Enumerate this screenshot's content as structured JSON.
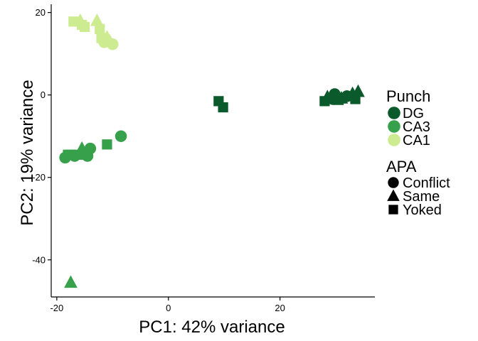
{
  "chart_data": {
    "type": "scatter",
    "xlabel": "PC1: 42% variance",
    "ylabel": "PC2: 19% variance",
    "xlim": [
      -21,
      37
    ],
    "ylim": [
      -49,
      22
    ],
    "xticks": [
      -20,
      0,
      20
    ],
    "xtick_labels": [
      "-20",
      "0",
      "20"
    ],
    "yticks": [
      20,
      0,
      -20,
      -40
    ],
    "ytick_labels": [
      "20",
      "0",
      "-20",
      "-40"
    ],
    "grid": false,
    "legend_position": "right",
    "color_legend": {
      "title": "Punch",
      "entries": [
        {
          "label": "DG",
          "color": "#0b5a2b"
        },
        {
          "label": "CA3",
          "color": "#36a04b"
        },
        {
          "label": "CA1",
          "color": "#cdeb90"
        }
      ]
    },
    "shape_legend": {
      "title": "APA",
      "entries": [
        {
          "label": "Conflict",
          "shape": "circle"
        },
        {
          "label": "Same",
          "shape": "triangle"
        },
        {
          "label": "Yoked",
          "shape": "square"
        }
      ]
    },
    "points": [
      {
        "x": 28.0,
        "y": -1.5,
        "punch": "DG",
        "apa": "square"
      },
      {
        "x": 28.5,
        "y": -0.5,
        "punch": "DG",
        "apa": "triangle"
      },
      {
        "x": 29.5,
        "y": -1.0,
        "punch": "DG",
        "apa": "circle"
      },
      {
        "x": 29.8,
        "y": 0.2,
        "punch": "DG",
        "apa": "circle"
      },
      {
        "x": 30.5,
        "y": -1.2,
        "punch": "DG",
        "apa": "square"
      },
      {
        "x": 31.0,
        "y": -0.8,
        "punch": "DG",
        "apa": "triangle"
      },
      {
        "x": 32.0,
        "y": -0.3,
        "punch": "DG",
        "apa": "circle"
      },
      {
        "x": 33.0,
        "y": 0.3,
        "punch": "DG",
        "apa": "triangle"
      },
      {
        "x": 33.5,
        "y": -1.0,
        "punch": "DG",
        "apa": "square"
      },
      {
        "x": 34.0,
        "y": 0.8,
        "punch": "DG",
        "apa": "triangle"
      },
      {
        "x": 9.0,
        "y": -1.5,
        "punch": "DG",
        "apa": "square"
      },
      {
        "x": 9.8,
        "y": -3.0,
        "punch": "DG",
        "apa": "square"
      },
      {
        "x": -8.5,
        "y": -10.0,
        "punch": "CA3",
        "apa": "circle"
      },
      {
        "x": -11.0,
        "y": -12.0,
        "punch": "CA3",
        "apa": "square"
      },
      {
        "x": -14.0,
        "y": -13.0,
        "punch": "CA3",
        "apa": "circle"
      },
      {
        "x": -14.5,
        "y": -14.8,
        "punch": "CA3",
        "apa": "circle"
      },
      {
        "x": -15.5,
        "y": -13.0,
        "punch": "CA3",
        "apa": "triangle"
      },
      {
        "x": -16.2,
        "y": -14.5,
        "punch": "CA3",
        "apa": "square"
      },
      {
        "x": -16.8,
        "y": -14.8,
        "punch": "CA3",
        "apa": "circle"
      },
      {
        "x": -17.5,
        "y": -14.5,
        "punch": "CA3",
        "apa": "square"
      },
      {
        "x": -18.0,
        "y": -14.5,
        "punch": "CA3",
        "apa": "square"
      },
      {
        "x": -18.5,
        "y": -15.2,
        "punch": "CA3",
        "apa": "circle"
      },
      {
        "x": -17.5,
        "y": -45.5,
        "punch": "CA3",
        "apa": "triangle"
      },
      {
        "x": -17.0,
        "y": 17.8,
        "punch": "CA1",
        "apa": "square"
      },
      {
        "x": -15.8,
        "y": 18.0,
        "punch": "CA1",
        "apa": "triangle"
      },
      {
        "x": -15.5,
        "y": 17.0,
        "punch": "CA1",
        "apa": "square"
      },
      {
        "x": -15.0,
        "y": 16.5,
        "punch": "CA1",
        "apa": "square"
      },
      {
        "x": -12.8,
        "y": 18.0,
        "punch": "CA1",
        "apa": "triangle"
      },
      {
        "x": -12.3,
        "y": 16.0,
        "punch": "CA1",
        "apa": "square"
      },
      {
        "x": -12.0,
        "y": 13.8,
        "punch": "CA1",
        "apa": "square"
      },
      {
        "x": -11.5,
        "y": 12.8,
        "punch": "CA1",
        "apa": "circle"
      },
      {
        "x": -11.0,
        "y": 14.0,
        "punch": "CA1",
        "apa": "triangle"
      },
      {
        "x": -10.5,
        "y": 13.0,
        "punch": "CA1",
        "apa": "triangle"
      },
      {
        "x": -10.0,
        "y": 12.3,
        "punch": "CA1",
        "apa": "circle"
      }
    ]
  }
}
